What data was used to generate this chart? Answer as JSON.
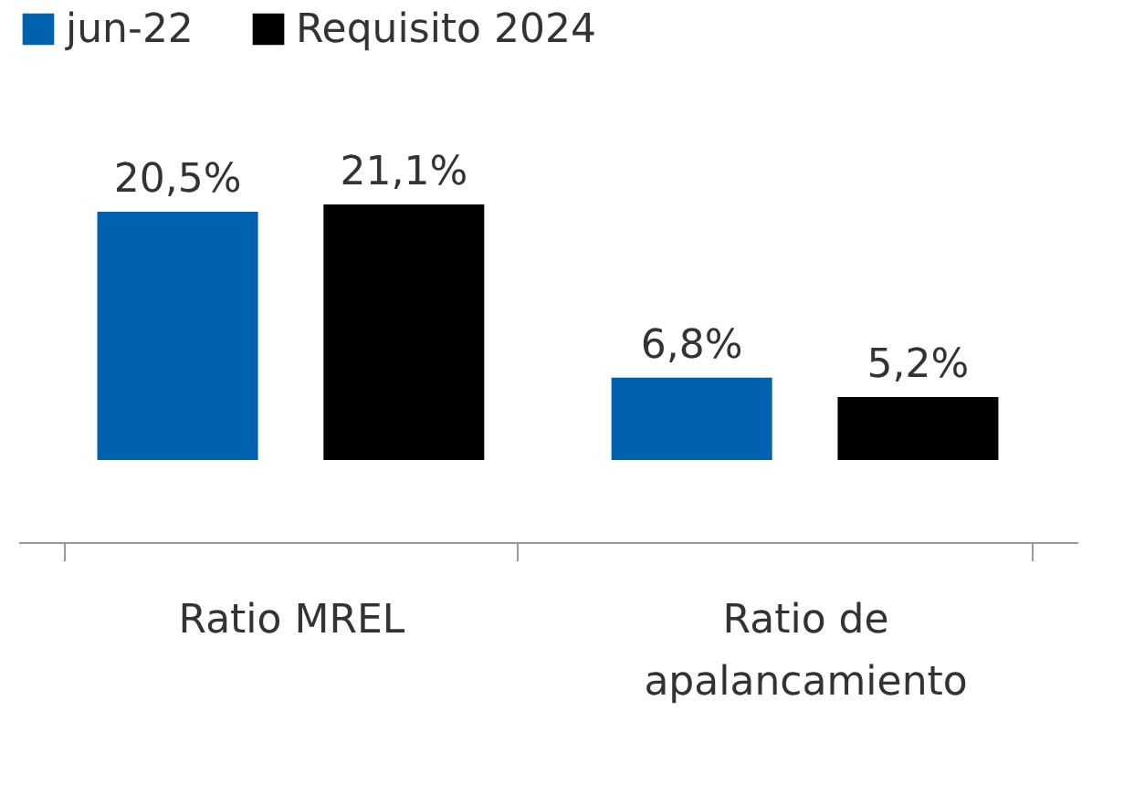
{
  "chart_data": {
    "type": "bar",
    "categories": [
      "Ratio MREL",
      "Ratio de\napalancamiento"
    ],
    "series": [
      {
        "name": "jun-22",
        "color": "#0061af",
        "values": [
          20.5,
          6.8
        ],
        "value_labels": [
          "20,5%",
          "6,8%"
        ]
      },
      {
        "name": "Requisito 2024",
        "color": "#000000",
        "values": [
          21.1,
          5.2
        ],
        "value_labels": [
          "21,1%",
          "5,2%"
        ]
      }
    ],
    "legend": "top",
    "grid": false
  }
}
